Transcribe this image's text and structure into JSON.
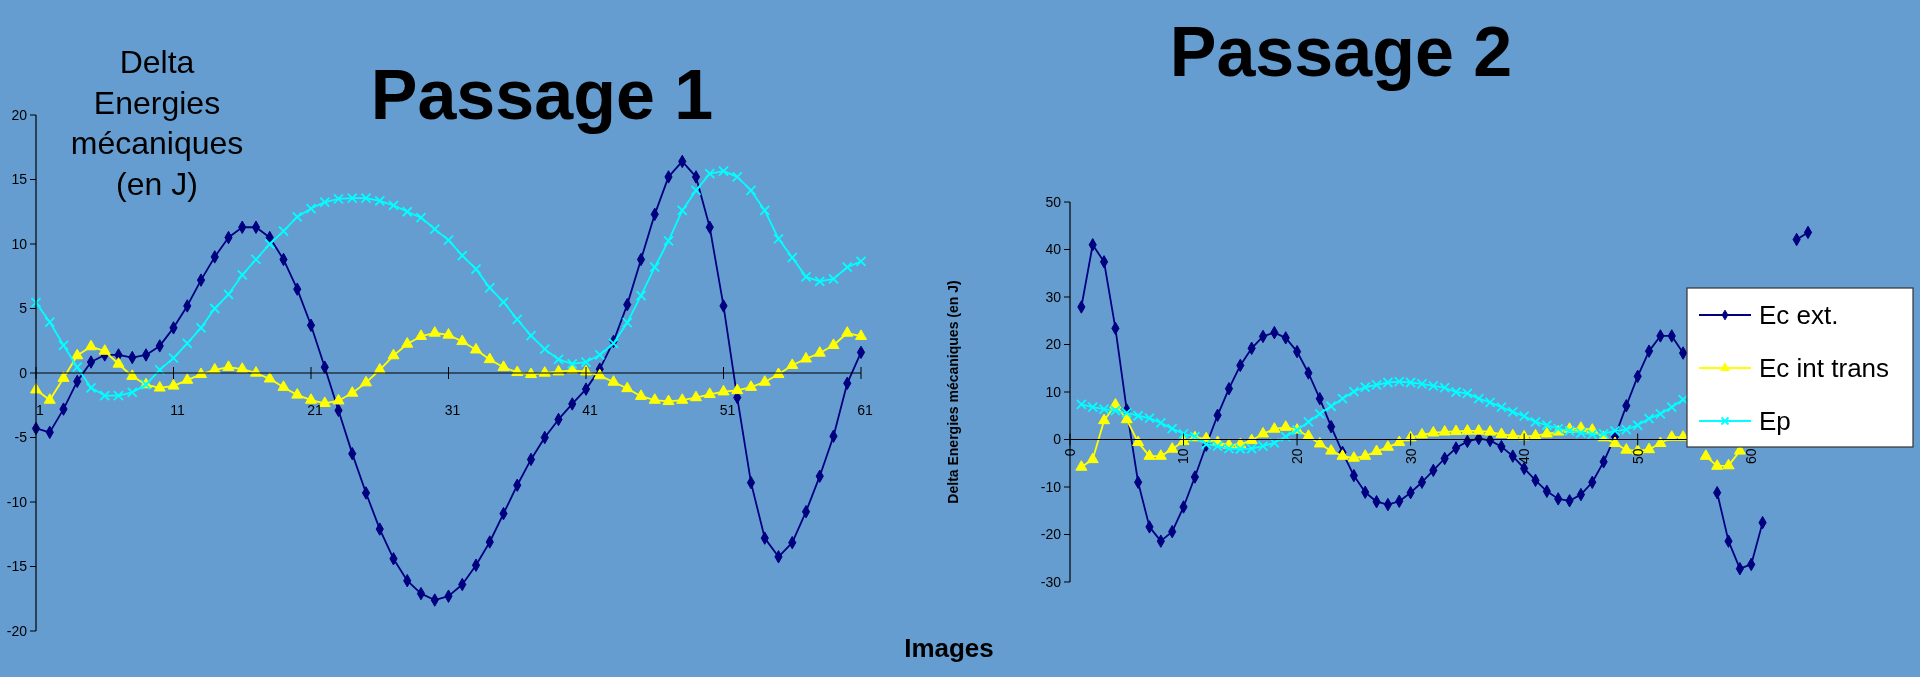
{
  "chart_data": [
    {
      "type": "line",
      "title": "Passage 1",
      "ylabel": "Delta\nEnergies\nmécaniques\n(en J)",
      "xlabel": "Images",
      "x": [
        1,
        2,
        3,
        4,
        5,
        6,
        7,
        8,
        9,
        10,
        11,
        12,
        13,
        14,
        15,
        16,
        17,
        18,
        19,
        20,
        21,
        22,
        23,
        24,
        25,
        26,
        27,
        28,
        29,
        30,
        31,
        32,
        33,
        34,
        35,
        36,
        37,
        38,
        39,
        40,
        41,
        42,
        43,
        44,
        45,
        46,
        47,
        48,
        49,
        50,
        51,
        52,
        53,
        54,
        55,
        56,
        57,
        58,
        59,
        60,
        61
      ],
      "xlim": [
        1,
        61
      ],
      "xticks": [
        1,
        11,
        21,
        31,
        41,
        51,
        61
      ],
      "ylim": [
        -20,
        20
      ],
      "yticks": [
        -20,
        -15,
        -10,
        -5,
        0,
        5,
        10,
        15,
        20
      ],
      "legend": false,
      "series": [
        {
          "color": "#000080",
          "marker": "diamond",
          "values": [
            -4.3,
            -4.6,
            -2.8,
            -0.65,
            0.85,
            1.4,
            1.4,
            1.2,
            1.4,
            2.1,
            3.5,
            5.2,
            7.2,
            9.0,
            10.5,
            11.3,
            11.3,
            10.5,
            8.8,
            6.5,
            3.7,
            0.45,
            -2.9,
            -6.25,
            -9.3,
            -12.1,
            -14.4,
            -16.1,
            -17.1,
            -17.6,
            -17.3,
            -16.4,
            -14.9,
            -13.1,
            -10.9,
            -8.7,
            -6.7,
            -5.0,
            -3.6,
            -2.4,
            -1.25,
            0.3,
            2.45,
            5.3,
            8.8,
            12.3,
            15.2,
            16.4,
            15.2,
            11.3,
            5.2,
            -1.9,
            -8.5,
            -12.8,
            -14.25,
            -13.15,
            -10.75,
            -8.0,
            -4.9,
            -0.8,
            1.6
          ]
        },
        {
          "color": "#ffff00",
          "marker": "triangle",
          "values": [
            -1.3,
            -2.1,
            -0.4,
            1.35,
            2.05,
            1.7,
            0.7,
            -0.25,
            -0.9,
            -1.15,
            -1.0,
            -0.55,
            -0.1,
            0.25,
            0.45,
            0.3,
            0,
            -0.45,
            -1.1,
            -1.7,
            -2.1,
            -2.35,
            -2.15,
            -1.55,
            -0.75,
            0.25,
            1.35,
            2.25,
            2.85,
            3.1,
            2.95,
            2.45,
            1.8,
            1.05,
            0.45,
            0.05,
            -0.1,
            0,
            0.1,
            0.2,
            0.1,
            -0.2,
            -0.7,
            -1.2,
            -1.8,
            -2.1,
            -2.2,
            -2.1,
            -1.9,
            -1.65,
            -1.45,
            -1.35,
            -1.1,
            -0.7,
            -0.1,
            0.6,
            1.1,
            1.55,
            2.15,
            3.1,
            2.85
          ]
        },
        {
          "color": "#00ffff",
          "marker": "cross",
          "values": [
            5.45,
            3.95,
            2.15,
            0.45,
            -1.15,
            -1.75,
            -1.75,
            -1.5,
            -0.9,
            0.25,
            1.15,
            2.3,
            3.5,
            5.0,
            6.1,
            7.6,
            8.8,
            10.0,
            11.0,
            12.1,
            12.75,
            13.25,
            13.5,
            13.55,
            13.55,
            13.35,
            13.0,
            12.5,
            12.05,
            11.15,
            10.3,
            9.1,
            8.05,
            6.6,
            5.5,
            4.15,
            2.9,
            1.85,
            1.05,
            0.7,
            0.85,
            1.4,
            2.3,
            3.9,
            6.0,
            8.2,
            10.25,
            12.6,
            14.15,
            15.45,
            15.65,
            15.2,
            14.15,
            12.6,
            10.4,
            8.95,
            7.45,
            7.1,
            7.3,
            8.2,
            8.65
          ]
        }
      ]
    },
    {
      "type": "line",
      "title": "Passage 2",
      "ylabel": "Delta Energies mécaniques (en J)",
      "x": [
        1,
        2,
        3,
        4,
        5,
        6,
        7,
        8,
        9,
        10,
        11,
        12,
        13,
        14,
        15,
        16,
        17,
        18,
        19,
        20,
        21,
        22,
        23,
        24,
        25,
        26,
        27,
        28,
        29,
        30,
        31,
        32,
        33,
        34,
        35,
        36,
        37,
        38,
        39,
        40,
        41,
        42,
        43,
        44,
        45,
        46,
        47,
        48,
        49,
        50,
        51,
        52,
        53,
        54,
        55,
        56,
        57,
        58,
        59,
        60,
        61,
        62,
        63,
        64,
        65
      ],
      "xlim": [
        0,
        65
      ],
      "xticks": [
        0,
        10,
        20,
        30,
        40,
        50,
        60
      ],
      "ylim": [
        -30,
        50
      ],
      "yticks": [
        -30,
        -20,
        -10,
        0,
        10,
        20,
        30,
        40,
        50
      ],
      "legend": "right",
      "series": [
        {
          "name": "Ec ext.",
          "color": "#000080",
          "marker": "diamond",
          "values": [
            27.9,
            41.0,
            37.4,
            23.4,
            6.2,
            -9.0,
            -18.4,
            -21.4,
            -19.4,
            -14.2,
            -7.9,
            -1.2,
            5.1,
            10.7,
            15.6,
            19.2,
            21.7,
            22.5,
            21.4,
            18.5,
            14.0,
            8.6,
            2.7,
            -2.7,
            -7.6,
            -11.1,
            -13.1,
            -13.7,
            -13.0,
            -11.2,
            -9.0,
            -6.5,
            -4.0,
            -1.8,
            -0.4,
            0.2,
            -0.2,
            -1.5,
            -3.5,
            -6.1,
            -8.6,
            -10.9,
            -12.5,
            -12.9,
            -11.6,
            -9.0,
            -4.7,
            0.6,
            7.1,
            13.3,
            18.6,
            21.8,
            21.8,
            18.2,
            null,
            null,
            -11.2,
            -21.4,
            -27.2,
            -26.3,
            -17.5,
            null,
            null,
            42.1,
            43.6
          ]
        },
        {
          "name": "Ec int trans",
          "color": "#ffff00",
          "marker": "triangle",
          "values": [
            -5.8,
            -4.2,
            4.0,
            7.3,
            4.2,
            -0.6,
            -3.5,
            -3.5,
            -2.0,
            -0.4,
            0.4,
            0.2,
            -0.6,
            -1.2,
            -1.0,
            -0.2,
            1.2,
            2.2,
            2.6,
            2.0,
            0.7,
            -0.9,
            -2.4,
            -3.5,
            -3.9,
            -3.5,
            -2.5,
            -1.6,
            -0.6,
            0.4,
            1.0,
            1.4,
            1.6,
            1.7,
            1.8,
            1.8,
            1.6,
            1.1,
            0.8,
            0.6,
            0.8,
            1.2,
            1.6,
            2.2,
            2.4,
            2.0,
            0.4,
            -0.8,
            -2.2,
            -2.4,
            -2.1,
            -0.8,
            0.5,
            0.5,
            null,
            -3.5,
            -5.6,
            -5.5,
            -2.4,
            null,
            null,
            null,
            null,
            null,
            null
          ]
        },
        {
          "name": "Ep",
          "color": "#00ffff",
          "marker": "cross",
          "values": [
            7.4,
            6.8,
            6.4,
            6.1,
            5.6,
            5.0,
            4.5,
            3.5,
            2.3,
            1.2,
            0.6,
            -1.0,
            -1.4,
            -1.9,
            -2.0,
            -1.9,
            -1.4,
            -0.7,
            0.6,
            2.0,
            3.7,
            5.4,
            7.0,
            8.6,
            10.1,
            11.0,
            11.5,
            12.0,
            12.2,
            12.0,
            11.7,
            11.3,
            10.9,
            10.0,
            9.7,
            8.6,
            7.8,
            6.8,
            5.8,
            4.9,
            3.7,
            3.0,
            2.3,
            1.8,
            1.4,
            1.1,
            1.2,
            1.8,
            2.1,
            3.0,
            4.4,
            5.4,
            6.8,
            8.4,
            null,
            null,
            null,
            null,
            null,
            null,
            null,
            null,
            null,
            null,
            null
          ]
        }
      ]
    }
  ]
}
